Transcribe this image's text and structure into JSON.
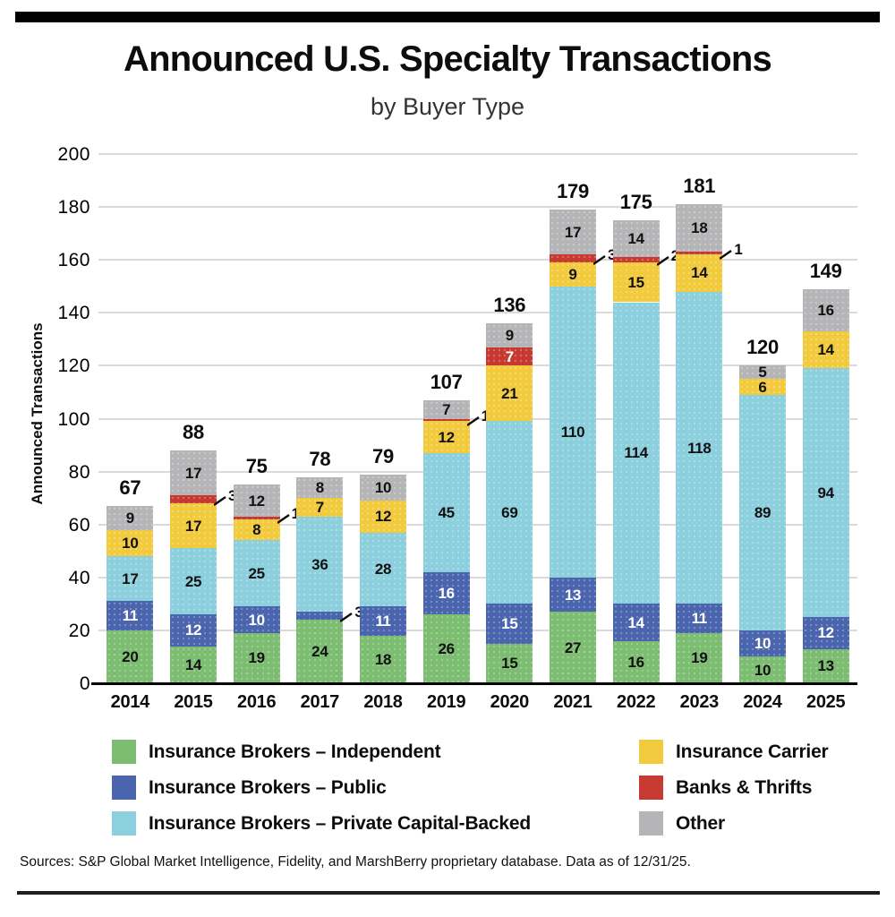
{
  "page": {
    "title": "Announced U.S. Specialty Transactions",
    "subtitle": "by Buyer Type",
    "source": "Sources: S&P Global Market Intelligence, Fidelity, and MarshBerry proprietary database. Data as of 12/31/25."
  },
  "chart_data": {
    "type": "bar",
    "stacked": true,
    "title": "Announced U.S. Specialty Transactions",
    "subtitle": "by Buyer Type",
    "xlabel": "",
    "ylabel": "Announced Transactions",
    "ylim": [
      0,
      200
    ],
    "yticks": [
      0,
      20,
      40,
      60,
      80,
      100,
      120,
      140,
      160,
      180,
      200
    ],
    "grid": "horizontal",
    "legend_position": "bottom",
    "categories": [
      "2014",
      "2015",
      "2016",
      "2017",
      "2018",
      "2019",
      "2020",
      "2021",
      "2022",
      "2023",
      "2024",
      "2025"
    ],
    "series": [
      {
        "name": "Insurance Brokers – Independent",
        "color": "#7cbd72",
        "text_color": "#111111",
        "values": [
          20,
          14,
          19,
          24,
          18,
          26,
          15,
          27,
          16,
          19,
          10,
          13
        ]
      },
      {
        "name": "Insurance Brokers – Public",
        "color": "#4a64ad",
        "text_color": "#ffffff",
        "values": [
          11,
          12,
          10,
          3,
          11,
          16,
          15,
          13,
          14,
          11,
          10,
          12
        ]
      },
      {
        "name": "Insurance Brokers – Private Capital-Backed",
        "color": "#8ccfdd",
        "text_color": "#111111",
        "values": [
          17,
          25,
          25,
          36,
          28,
          45,
          69,
          110,
          114,
          118,
          89,
          94
        ]
      },
      {
        "name": "Insurance Carrier",
        "color": "#f2ca3d",
        "text_color": "#111111",
        "values": [
          10,
          17,
          8,
          7,
          12,
          12,
          21,
          9,
          15,
          14,
          6,
          14
        ]
      },
      {
        "name": "Banks & Thrifts",
        "color": "#c63a31",
        "text_color": "#ffffff",
        "values": [
          0,
          3,
          1,
          0,
          0,
          1,
          7,
          3,
          2,
          1,
          0,
          0
        ]
      },
      {
        "name": "Other",
        "color": "#b5b5b7",
        "text_color": "#111111",
        "values": [
          9,
          17,
          12,
          8,
          10,
          7,
          9,
          17,
          14,
          18,
          5,
          16
        ]
      }
    ],
    "totals": [
      67,
      88,
      75,
      78,
      79,
      107,
      136,
      179,
      175,
      181,
      120,
      149
    ],
    "callouts": [
      {
        "series": 4,
        "category": "2015",
        "value": 3
      },
      {
        "series": 4,
        "category": "2016",
        "value": 1
      },
      {
        "series": 1,
        "category": "2017",
        "value": 3
      },
      {
        "series": 4,
        "category": "2019",
        "value": 1
      },
      {
        "series": 4,
        "category": "2021",
        "value": 3
      },
      {
        "series": 4,
        "category": "2022",
        "value": 2
      },
      {
        "series": 4,
        "category": "2023",
        "value": 1
      }
    ],
    "legend": {
      "left_column_series": [
        0,
        1,
        2
      ],
      "right_column_series": [
        3,
        4,
        5
      ]
    }
  }
}
